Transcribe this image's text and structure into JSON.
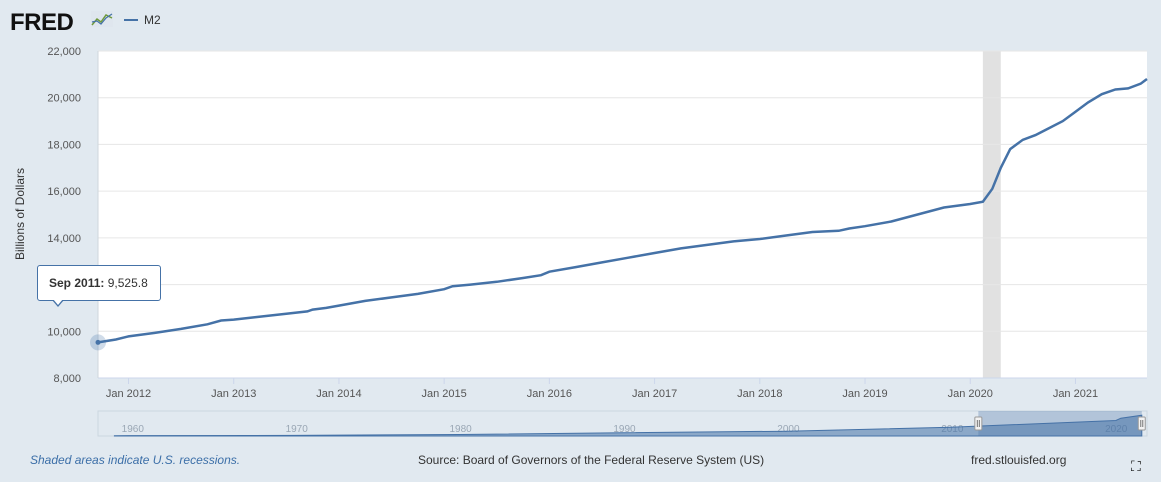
{
  "header": {
    "logo_text": "FRED",
    "legend_label": "M2",
    "series_color": "#4572a7"
  },
  "chart_data": {
    "type": "line",
    "title": "",
    "xlabel": "",
    "ylabel": "Billions of Dollars",
    "ylim": [
      8000,
      22000
    ],
    "yticks": [
      8000,
      10000,
      12000,
      14000,
      16000,
      18000,
      20000,
      22000
    ],
    "ytick_labels": [
      "8,000",
      "10,000",
      "12,000",
      "14,000",
      "16,000",
      "18,000",
      "20,000",
      "22,000"
    ],
    "xlim": [
      2011.71,
      2021.68
    ],
    "xticks": [
      2012,
      2013,
      2014,
      2015,
      2016,
      2017,
      2018,
      2019,
      2020,
      2021
    ],
    "xtick_labels": [
      "Jan 2012",
      "Jan 2013",
      "Jan 2014",
      "Jan 2015",
      "Jan 2016",
      "Jan 2017",
      "Jan 2018",
      "Jan 2019",
      "Jan 2020",
      "Jan 2021"
    ],
    "recessions": [
      [
        2020.12,
        2020.29
      ]
    ],
    "series": [
      {
        "name": "M2",
        "x": [
          2011.71,
          2011.88,
          2012.0,
          2012.25,
          2012.5,
          2012.75,
          2012.88,
          2013.0,
          2013.2,
          2013.5,
          2013.7,
          2013.75,
          2013.88,
          2014.0,
          2014.25,
          2014.5,
          2014.75,
          2015.0,
          2015.08,
          2015.25,
          2015.5,
          2015.75,
          2015.92,
          2016.0,
          2016.25,
          2016.5,
          2016.75,
          2017.0,
          2017.25,
          2017.5,
          2017.75,
          2018.0,
          2018.25,
          2018.5,
          2018.75,
          2018.85,
          2019.0,
          2019.25,
          2019.5,
          2019.75,
          2020.0,
          2020.12,
          2020.21,
          2020.29,
          2020.38,
          2020.5,
          2020.62,
          2020.75,
          2020.88,
          2021.0,
          2021.12,
          2021.25,
          2021.38,
          2021.5,
          2021.62,
          2021.68
        ],
        "values": [
          9525.8,
          9650,
          9780,
          9930,
          10100,
          10300,
          10460,
          10500,
          10600,
          10750,
          10850,
          10930,
          11000,
          11100,
          11300,
          11450,
          11600,
          11800,
          11930,
          12000,
          12120,
          12280,
          12400,
          12550,
          12750,
          12950,
          13150,
          13350,
          13550,
          13700,
          13850,
          13950,
          14100,
          14250,
          14300,
          14400,
          14500,
          14700,
          15000,
          15300,
          15450,
          15550,
          16100,
          17000,
          17800,
          18200,
          18400,
          18700,
          19000,
          19400,
          19800,
          20150,
          20350,
          20400,
          20600,
          20800
        ]
      }
    ],
    "tooltip": {
      "date": "Sep 2011:",
      "value": "9,525.8"
    },
    "navigator": {
      "labels": [
        "1960",
        "1970",
        "1980",
        "1990",
        "2000",
        "2010",
        "2020"
      ],
      "label_years": [
        1960,
        1970,
        1980,
        1990,
        2000,
        2010,
        2020
      ],
      "xlim": [
        1958,
        2022
      ],
      "selected_range": [
        2011.71,
        2021.68
      ]
    }
  },
  "footer": {
    "recession_note": "Shaded areas indicate U.S. recessions.",
    "source": "Source: Board of Governors of the Federal Reserve System (US)",
    "site": "fred.stlouisfed.org",
    "fullscreen_glyph": "⛶"
  }
}
